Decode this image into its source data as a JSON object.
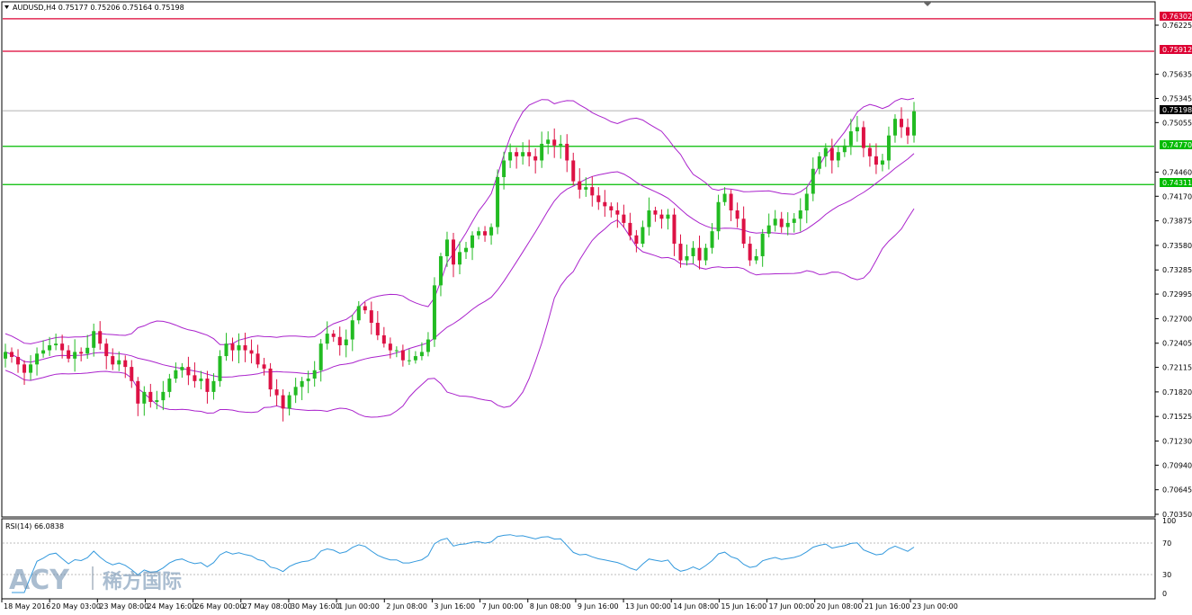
{
  "header": {
    "symbol_info": "AUDUSD,H4  0.75177 0.75206 0.75164 0.75198"
  },
  "rsi": {
    "label": "RSI(14) 66.0838",
    "levels": [
      "100",
      "70",
      "30",
      "0"
    ]
  },
  "price_axis": {
    "ticks": [
      "0.76225",
      "0.75635",
      "0.75345",
      "0.75055",
      "0.74460",
      "0.74170",
      "0.73875",
      "0.73580",
      "0.73285",
      "0.72995",
      "0.72700",
      "0.72405",
      "0.72115",
      "0.71820",
      "0.71525",
      "0.71230",
      "0.70940",
      "0.70645",
      "0.70350"
    ]
  },
  "price_tags": {
    "resistance_1": "0.76302",
    "resistance_2": "0.75912",
    "current": "0.75198",
    "support_1": "0.74770",
    "support_2": "0.74311"
  },
  "colors": {
    "resistance": "#dd0033",
    "support": "#00bb00",
    "bullish": "#22bb22",
    "bearish": "#dd1144",
    "bollinger": "#aa22cc",
    "rsi_line": "#3399dd",
    "current": "#999999"
  },
  "time_axis": {
    "labels": [
      "18 May 2016",
      "20 May 03:00",
      "23 May 08:00",
      "24 May 16:00",
      "26 May 00:00",
      "27 May 08:00",
      "30 May 16:00",
      "1 Jun 00:00",
      "2 Jun 08:00",
      "3 Jun 16:00",
      "7 Jun 00:00",
      "8 Jun 08:00",
      "9 Jun 16:00",
      "13 Jun 00:00",
      "14 Jun 08:00",
      "15 Jun 16:00",
      "17 Jun 00:00",
      "20 Jun 08:00",
      "21 Jun 16:00",
      "23 Jun 00:00"
    ]
  },
  "watermark": {
    "brand": "ACY",
    "chinese": "稀方国际"
  },
  "chart_data": {
    "type": "candlestick",
    "symbol": "AUDUSD",
    "timeframe": "H4",
    "open": 0.75177,
    "high": 0.75206,
    "low": 0.75164,
    "close": 0.75198,
    "horizontal_lines": [
      0.76302,
      0.75912,
      0.7477,
      0.74311
    ],
    "current_price": 0.75198,
    "closes": [
      0.723,
      0.7224,
      0.7215,
      0.7205,
      0.7215,
      0.7228,
      0.7232,
      0.7238,
      0.724,
      0.7232,
      0.7222,
      0.723,
      0.7228,
      0.7235,
      0.7255,
      0.724,
      0.7225,
      0.7215,
      0.722,
      0.7212,
      0.7195,
      0.7168,
      0.7182,
      0.717,
      0.7172,
      0.7182,
      0.7198,
      0.7208,
      0.7212,
      0.7202,
      0.7195,
      0.7198,
      0.7182,
      0.7195,
      0.7225,
      0.724,
      0.7232,
      0.7238,
      0.7232,
      0.7228,
      0.7215,
      0.721,
      0.7185,
      0.7178,
      0.7162,
      0.7178,
      0.7188,
      0.7195,
      0.7198,
      0.7208,
      0.724,
      0.7252,
      0.7248,
      0.7238,
      0.7245,
      0.7268,
      0.7285,
      0.728,
      0.7265,
      0.725,
      0.724,
      0.7232,
      0.7232,
      0.722,
      0.722,
      0.7225,
      0.723,
      0.7245,
      0.731,
      0.7345,
      0.7365,
      0.7335,
      0.735,
      0.7355,
      0.737,
      0.7375,
      0.737,
      0.738,
      0.744,
      0.746,
      0.747,
      0.7465,
      0.747,
      0.7465,
      0.746,
      0.748,
      0.7485,
      0.7478,
      0.748,
      0.746,
      0.7435,
      0.7425,
      0.7428,
      0.7418,
      0.741,
      0.7405,
      0.74,
      0.7395,
      0.7385,
      0.737,
      0.736,
      0.738,
      0.74,
      0.7395,
      0.739,
      0.7395,
      0.736,
      0.734,
      0.7345,
      0.7355,
      0.734,
      0.7355,
      0.7375,
      0.741,
      0.742,
      0.74,
      0.739,
      0.736,
      0.734,
      0.7345,
      0.7372,
      0.7382,
      0.739,
      0.738,
      0.7385,
      0.739,
      0.74,
      0.742,
      0.745,
      0.7465,
      0.7475,
      0.746,
      0.747,
      0.7478,
      0.7495,
      0.75,
      0.7475,
      0.7465,
      0.7455,
      0.746,
      0.749,
      0.751,
      0.75,
      0.749,
      0.7519
    ]
  }
}
